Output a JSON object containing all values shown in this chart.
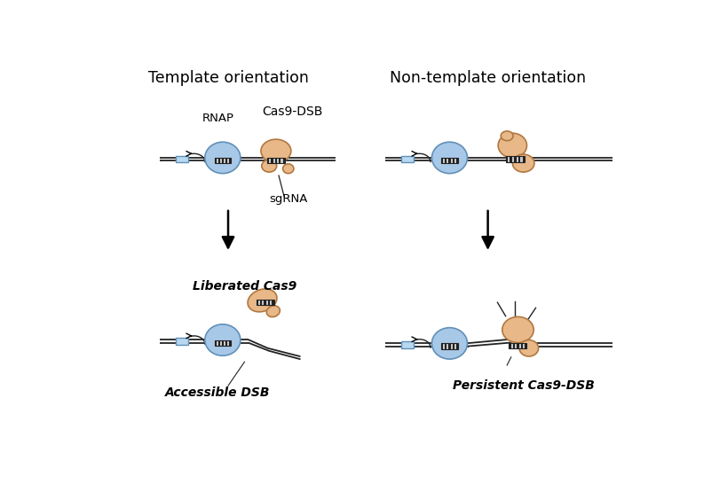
{
  "bg_color": "#ffffff",
  "blue_color": "#a8c8e8",
  "blue_edge": "#6090b8",
  "orange_color": "#e8b888",
  "orange_edge": "#b07840",
  "dna_color": "#222222",
  "promoter_color": "#b8d8f0",
  "promoter_edge": "#6090b8",
  "stripe_color": "#222222",
  "title_left": "Template orientation",
  "title_right": "Non-template orientation",
  "label_rnap": "RNAP",
  "label_cas9dsb": "Cas9-DSB",
  "label_sgrna": "sgRNA",
  "label_liberated": "Liberated Cas9",
  "label_accessible": "Accessible DSB",
  "label_persistent": "Persistent Cas9-DSB"
}
